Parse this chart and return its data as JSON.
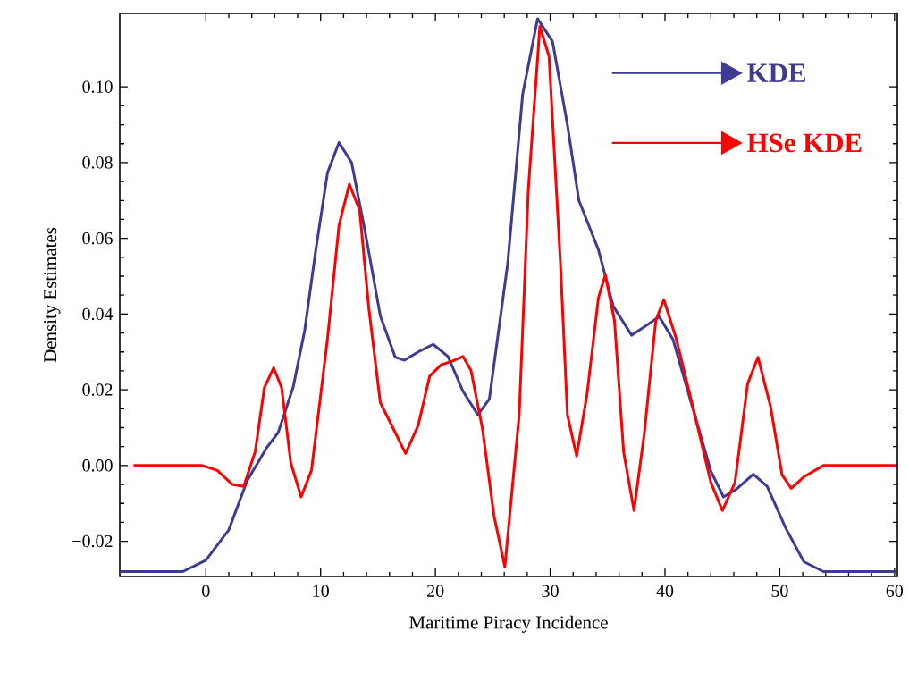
{
  "chart_data": {
    "type": "line",
    "xlabel": "Maritime Piracy Incidence",
    "ylabel": "Density Estimates",
    "xlim": [
      -7.5,
      60.25
    ],
    "ylim": [
      -0.0293,
      0.1194
    ],
    "xticks": [
      0,
      10,
      20,
      30,
      40,
      50,
      60
    ],
    "yticks": [
      {
        "value": -0.02,
        "label": "−0.02"
      },
      {
        "value": 0,
        "label": "0.00"
      },
      {
        "value": 0.02,
        "label": "0.02"
      },
      {
        "value": 0.04,
        "label": "0.04"
      },
      {
        "value": 0.06,
        "label": "0.06"
      },
      {
        "value": 0.08,
        "label": "0.08"
      },
      {
        "value": 0.1,
        "label": "0.10"
      }
    ],
    "legend": "top right",
    "marker": "none",
    "line_style": "solid",
    "series": [
      {
        "name": "KDE",
        "color": "#3c3c96",
        "x": [
          -7.5,
          -2,
          0,
          2,
          3.6,
          5.3,
          6.3,
          7.6,
          8.6,
          9.6,
          10.6,
          11.6,
          12.7,
          13.9,
          15.2,
          16.5,
          17.3,
          18.5,
          19.8,
          21.1,
          22.4,
          23.7,
          24.7,
          26.3,
          27.6,
          28.9,
          30.2,
          31.5,
          32.5,
          34.2,
          35.5,
          37.1,
          38.4,
          39.5,
          40.7,
          42.3,
          44.0,
          45.1,
          46.2,
          47.7,
          48.9,
          50.5,
          52.1,
          53.8,
          60.1
        ],
        "values": [
          -0.028,
          -0.028,
          -0.025,
          -0.017,
          -0.004,
          0.0047,
          0.0087,
          0.0206,
          0.0355,
          0.0574,
          0.0773,
          0.0853,
          0.08,
          0.0614,
          0.0395,
          0.0286,
          0.0278,
          0.03,
          0.032,
          0.0288,
          0.0196,
          0.0134,
          0.0176,
          0.0534,
          0.098,
          0.118,
          0.112,
          0.09,
          0.07,
          0.057,
          0.042,
          0.0344,
          0.037,
          0.0393,
          0.0333,
          0.0164,
          -0.0015,
          -0.0083,
          -0.0063,
          -0.0023,
          -0.0055,
          -0.0164,
          -0.0254,
          -0.028,
          -0.028
        ]
      },
      {
        "name": "HSe KDE",
        "color": "#ff0000",
        "x": [
          -6.3,
          -0.3,
          1,
          2.3,
          3.3,
          4.3,
          5.1,
          5.9,
          6.6,
          7.4,
          8.3,
          9.2,
          10.6,
          11.6,
          12.5,
          13.4,
          14.2,
          15.2,
          16.5,
          17.4,
          18.5,
          19.5,
          20.5,
          21.5,
          22.4,
          23.1,
          24.1,
          25.1,
          26.05,
          27.3,
          28.1,
          29.1,
          29.9,
          30.9,
          31.5,
          32.3,
          33.2,
          34.2,
          34.8,
          35.6,
          36.4,
          37.3,
          38.2,
          39.2,
          39.9,
          41.0,
          42.6,
          44.0,
          45.0,
          46.1,
          47.2,
          48.1,
          49.2,
          50.2,
          51.0,
          52.1,
          53.8,
          60.1
        ],
        "values": [
          0,
          0,
          -0.0013,
          -0.005,
          -0.0055,
          0.0037,
          0.0206,
          0.0258,
          0.0206,
          0.0007,
          -0.0083,
          -0.0013,
          0.0335,
          0.0634,
          0.0743,
          0.0674,
          0.0415,
          0.0166,
          0.0087,
          0.0032,
          0.0106,
          0.0236,
          0.0266,
          0.0276,
          0.0288,
          0.0251,
          0.0097,
          -0.0132,
          -0.0268,
          0.0134,
          0.0731,
          0.116,
          0.108,
          0.053,
          0.0134,
          0.0025,
          0.0186,
          0.0443,
          0.0503,
          0.0383,
          0.0035,
          -0.0119,
          0.0085,
          0.0383,
          0.0438,
          0.0333,
          0.0134,
          -0.0045,
          -0.0119,
          -0.0045,
          0.0216,
          0.0286,
          0.0156,
          -0.0025,
          -0.006,
          -0.003,
          0,
          0
        ]
      }
    ]
  }
}
